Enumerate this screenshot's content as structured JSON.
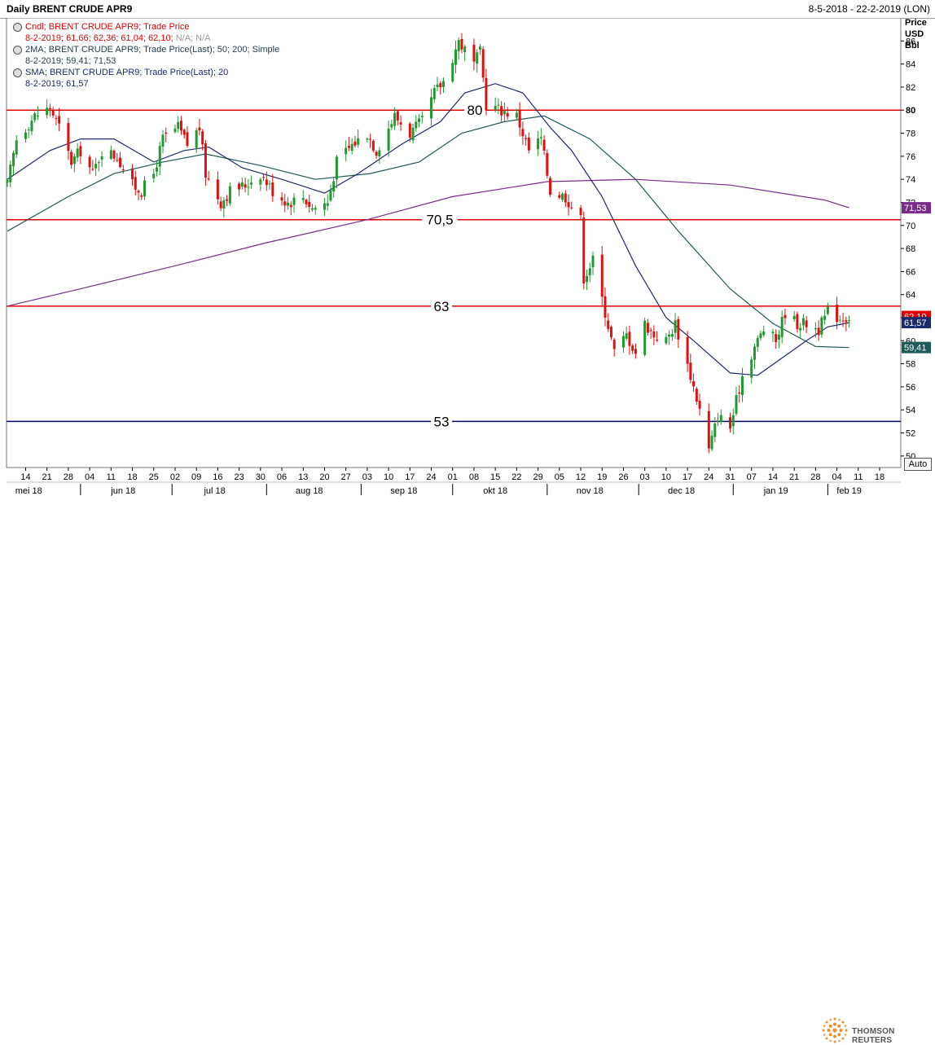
{
  "header": {
    "title": "Daily BRENT CRUDE APR9",
    "date_range": "8-5-2018 - 22-2-2019 (LON)"
  },
  "legend": {
    "candles_line1": "Cndl; BRENT CRUDE APR9; Trade Price",
    "candles_line2_values": "8-2-2019; 61,66; 62,36; 61,04; 62,10;",
    "candles_line2_na": " N/A; N/A",
    "ma_line1": "2MA; BRENT CRUDE APR9; Trade Price(Last);  50; 200; Simple",
    "ma_line2": "8-2-2019; 59,41; 71,53",
    "sma_line1": "SMA; BRENT CRUDE APR9; Trade Price(Last);  20",
    "sma_line2": "8-2-2019; 61,57"
  },
  "axis": {
    "unit_line1": "Price",
    "unit_line2": "USD",
    "unit_line3": "Bbl",
    "auto_button": "Auto"
  },
  "footer": {
    "brand": "THOMSON REUTERS"
  },
  "colors": {
    "up": "#1e9a2e",
    "down": "#e01010",
    "sma20": "#1a2a6a",
    "ma50": "#1f5a5a",
    "ma200": "#7a2a8a",
    "level_red": "#e00000",
    "level_navy": "#000060"
  },
  "chart_data": {
    "type": "candlestick",
    "title": "Daily BRENT CRUDE APR9",
    "ylabel": "Price USD Bbl",
    "ylim": [
      49,
      88
    ],
    "y_ticks": [
      50,
      52,
      54,
      56,
      58,
      60,
      62,
      64,
      66,
      68,
      70,
      72,
      74,
      76,
      78,
      80,
      82,
      84,
      86
    ],
    "x_range": [
      "2018-05-08",
      "2019-02-22"
    ],
    "day_ticks": [
      {
        "d": "2018-05-14",
        "l": "14"
      },
      {
        "d": "2018-05-21",
        "l": "21"
      },
      {
        "d": "2018-05-28",
        "l": "28"
      },
      {
        "d": "2018-06-04",
        "l": "04"
      },
      {
        "d": "2018-06-11",
        "l": "11"
      },
      {
        "d": "2018-06-18",
        "l": "18"
      },
      {
        "d": "2018-06-25",
        "l": "25"
      },
      {
        "d": "2018-07-02",
        "l": "02"
      },
      {
        "d": "2018-07-09",
        "l": "09"
      },
      {
        "d": "2018-07-16",
        "l": "16"
      },
      {
        "d": "2018-07-23",
        "l": "23"
      },
      {
        "d": "2018-07-30",
        "l": "30"
      },
      {
        "d": "2018-08-06",
        "l": "06"
      },
      {
        "d": "2018-08-13",
        "l": "13"
      },
      {
        "d": "2018-08-20",
        "l": "20"
      },
      {
        "d": "2018-08-27",
        "l": "27"
      },
      {
        "d": "2018-09-03",
        "l": "03"
      },
      {
        "d": "2018-09-10",
        "l": "10"
      },
      {
        "d": "2018-09-17",
        "l": "17"
      },
      {
        "d": "2018-09-24",
        "l": "24"
      },
      {
        "d": "2018-10-01",
        "l": "01"
      },
      {
        "d": "2018-10-08",
        "l": "08"
      },
      {
        "d": "2018-10-15",
        "l": "15"
      },
      {
        "d": "2018-10-22",
        "l": "22"
      },
      {
        "d": "2018-10-29",
        "l": "29"
      },
      {
        "d": "2018-11-05",
        "l": "05"
      },
      {
        "d": "2018-11-12",
        "l": "12"
      },
      {
        "d": "2018-11-19",
        "l": "19"
      },
      {
        "d": "2018-11-26",
        "l": "26"
      },
      {
        "d": "2018-12-03",
        "l": "03"
      },
      {
        "d": "2018-12-10",
        "l": "10"
      },
      {
        "d": "2018-12-17",
        "l": "17"
      },
      {
        "d": "2018-12-24",
        "l": "24"
      },
      {
        "d": "2018-12-31",
        "l": "31"
      },
      {
        "d": "2019-01-07",
        "l": "07"
      },
      {
        "d": "2019-01-14",
        "l": "14"
      },
      {
        "d": "2019-01-21",
        "l": "21"
      },
      {
        "d": "2019-01-28",
        "l": "28"
      },
      {
        "d": "2019-02-04",
        "l": "04"
      },
      {
        "d": "2019-02-11",
        "l": "11"
      },
      {
        "d": "2019-02-18",
        "l": "18"
      }
    ],
    "month_ticks": [
      {
        "d": "2018-05-15",
        "l": "mei 18",
        "sep": "2018-06-01"
      },
      {
        "d": "2018-06-15",
        "l": "jun 18",
        "sep": "2018-07-01"
      },
      {
        "d": "2018-07-15",
        "l": "jul 18",
        "sep": "2018-08-01"
      },
      {
        "d": "2018-08-15",
        "l": "aug 18",
        "sep": "2018-09-01"
      },
      {
        "d": "2018-09-15",
        "l": "sep 18",
        "sep": "2018-10-01"
      },
      {
        "d": "2018-10-15",
        "l": "okt 18",
        "sep": "2018-11-01"
      },
      {
        "d": "2018-11-15",
        "l": "nov 18",
        "sep": "2018-12-01"
      },
      {
        "d": "2018-12-15",
        "l": "dec 18",
        "sep": "2019-01-01"
      },
      {
        "d": "2019-01-15",
        "l": "jan 19",
        "sep": "2019-02-01"
      },
      {
        "d": "2019-02-08",
        "l": "feb 19",
        "sep": null
      }
    ],
    "levels": [
      {
        "value": 80,
        "label": "80",
        "color": "#e00000"
      },
      {
        "value": 70.5,
        "label": "70,5",
        "color": "#e00000"
      },
      {
        "value": 63,
        "label": "63",
        "color": "#e00000"
      },
      {
        "value": 53,
        "label": "53",
        "color": "#000060"
      }
    ],
    "price_tags": [
      {
        "value": 62.1,
        "label": "62,10",
        "bg": "#e00000"
      },
      {
        "value": 61.57,
        "label": "61,57",
        "bg": "#1a2a6a"
      },
      {
        "value": 59.41,
        "label": "59,41",
        "bg": "#1f5a5a"
      },
      {
        "value": 71.53,
        "label": "71,53",
        "bg": "#7a2a8a"
      }
    ],
    "anchors": [
      [
        "2018-05-08",
        73.5
      ],
      [
        "2018-05-11",
        77.5
      ],
      [
        "2018-05-17",
        79.5
      ],
      [
        "2018-05-22",
        80.2
      ],
      [
        "2018-05-25",
        78.5
      ],
      [
        "2018-05-29",
        75.5
      ],
      [
        "2018-06-01",
        76.5
      ],
      [
        "2018-06-05",
        74.5
      ],
      [
        "2018-06-08",
        76.5
      ],
      [
        "2018-06-13",
        76.0
      ],
      [
        "2018-06-18",
        73.5
      ],
      [
        "2018-06-21",
        73.0
      ],
      [
        "2018-06-25",
        74.5
      ],
      [
        "2018-06-28",
        77.5
      ],
      [
        "2018-07-03",
        78.5
      ],
      [
        "2018-07-06",
        77.0
      ],
      [
        "2018-07-10",
        78.5
      ],
      [
        "2018-07-12",
        74.5
      ],
      [
        "2018-07-17",
        72.0
      ],
      [
        "2018-07-20",
        73.0
      ],
      [
        "2018-07-25",
        73.5
      ],
      [
        "2018-07-30",
        74.5
      ],
      [
        "2018-08-03",
        73.0
      ],
      [
        "2018-08-08",
        72.0
      ],
      [
        "2018-08-13",
        72.5
      ],
      [
        "2018-08-16",
        71.5
      ],
      [
        "2018-08-21",
        72.0
      ],
      [
        "2018-08-24",
        75.5
      ],
      [
        "2018-08-29",
        77.0
      ],
      [
        "2018-09-03",
        78.0
      ],
      [
        "2018-09-06",
        76.5
      ],
      [
        "2018-09-12",
        79.5
      ],
      [
        "2018-09-17",
        78.0
      ],
      [
        "2018-09-21",
        79.0
      ],
      [
        "2018-09-25",
        81.5
      ],
      [
        "2018-09-28",
        82.5
      ],
      [
        "2018-10-03",
        86.0
      ],
      [
        "2018-10-08",
        84.0
      ],
      [
        "2018-10-10",
        85.0
      ],
      [
        "2018-10-12",
        80.5
      ],
      [
        "2018-10-17",
        80.0
      ],
      [
        "2018-10-22",
        79.5
      ],
      [
        "2018-10-26",
        76.5
      ],
      [
        "2018-10-30",
        77.5
      ],
      [
        "2018-11-02",
        73.0
      ],
      [
        "2018-11-07",
        72.5
      ],
      [
        "2018-11-12",
        70.5
      ],
      [
        "2018-11-13",
        65.5
      ],
      [
        "2018-11-16",
        67.0
      ],
      [
        "2018-11-20",
        62.5
      ],
      [
        "2018-11-23",
        59.0
      ],
      [
        "2018-11-27",
        60.5
      ],
      [
        "2018-11-30",
        59.0
      ],
      [
        "2018-12-03",
        61.5
      ],
      [
        "2018-12-06",
        60.5
      ],
      [
        "2018-12-10",
        60.0
      ],
      [
        "2018-12-13",
        61.5
      ],
      [
        "2018-12-18",
        57.0
      ],
      [
        "2018-12-21",
        54.0
      ],
      [
        "2018-12-24",
        50.5
      ],
      [
        "2018-12-27",
        53.5
      ],
      [
        "2018-12-31",
        52.5
      ],
      [
        "2019-01-04",
        57.0
      ],
      [
        "2019-01-08",
        59.5
      ],
      [
        "2019-01-11",
        61.0
      ],
      [
        "2019-01-15",
        60.0
      ],
      [
        "2019-01-18",
        62.5
      ],
      [
        "2019-01-22",
        61.5
      ],
      [
        "2019-01-25",
        61.5
      ],
      [
        "2019-01-29",
        61.0
      ],
      [
        "2019-02-01",
        62.5
      ],
      [
        "2019-02-05",
        62.0
      ],
      [
        "2019-02-08",
        62.1
      ]
    ],
    "sma20": [
      [
        "2018-05-08",
        74.0
      ],
      [
        "2018-05-22",
        76.5
      ],
      [
        "2018-06-01",
        77.5
      ],
      [
        "2018-06-12",
        77.5
      ],
      [
        "2018-06-25",
        75.5
      ],
      [
        "2018-07-05",
        76.5
      ],
      [
        "2018-07-13",
        76.8
      ],
      [
        "2018-07-24",
        75.0
      ],
      [
        "2018-08-06",
        74.0
      ],
      [
        "2018-08-20",
        72.8
      ],
      [
        "2018-08-31",
        74.5
      ],
      [
        "2018-09-14",
        77.0
      ],
      [
        "2018-09-27",
        79.0
      ],
      [
        "2018-10-05",
        81.5
      ],
      [
        "2018-10-15",
        82.3
      ],
      [
        "2018-10-24",
        81.5
      ],
      [
        "2018-11-02",
        78.5
      ],
      [
        "2018-11-09",
        76.5
      ],
      [
        "2018-11-19",
        72.5
      ],
      [
        "2018-11-30",
        66.5
      ],
      [
        "2018-12-10",
        62.0
      ],
      [
        "2018-12-19",
        60.0
      ],
      [
        "2018-12-31",
        57.2
      ],
      [
        "2019-01-09",
        57.0
      ],
      [
        "2019-01-17",
        58.5
      ],
      [
        "2019-01-25",
        60.0
      ],
      [
        "2019-02-01",
        61.2
      ],
      [
        "2019-02-08",
        61.57
      ]
    ],
    "ma50": [
      [
        "2018-05-08",
        69.5
      ],
      [
        "2018-05-28",
        72.5
      ],
      [
        "2018-06-12",
        74.5
      ],
      [
        "2018-06-28",
        75.5
      ],
      [
        "2018-07-12",
        76.2
      ],
      [
        "2018-07-30",
        75.2
      ],
      [
        "2018-08-17",
        74.0
      ],
      [
        "2018-09-04",
        74.5
      ],
      [
        "2018-09-20",
        75.5
      ],
      [
        "2018-10-04",
        78.0
      ],
      [
        "2018-10-18",
        79.0
      ],
      [
        "2018-10-31",
        79.5
      ],
      [
        "2018-11-15",
        77.5
      ],
      [
        "2018-11-30",
        74.0
      ],
      [
        "2018-12-14",
        69.5
      ],
      [
        "2018-12-31",
        64.5
      ],
      [
        "2019-01-14",
        61.5
      ],
      [
        "2019-01-28",
        59.5
      ],
      [
        "2019-02-08",
        59.41
      ]
    ],
    "ma200": [
      [
        "2018-05-08",
        63.0
      ],
      [
        "2018-06-01",
        64.5
      ],
      [
        "2018-07-02",
        66.5
      ],
      [
        "2018-08-01",
        68.5
      ],
      [
        "2018-09-03",
        70.5
      ],
      [
        "2018-10-01",
        72.5
      ],
      [
        "2018-11-01",
        73.8
      ],
      [
        "2018-11-30",
        74.0
      ],
      [
        "2018-12-31",
        73.5
      ],
      [
        "2019-01-31",
        72.2
      ],
      [
        "2019-02-08",
        71.53
      ]
    ]
  }
}
